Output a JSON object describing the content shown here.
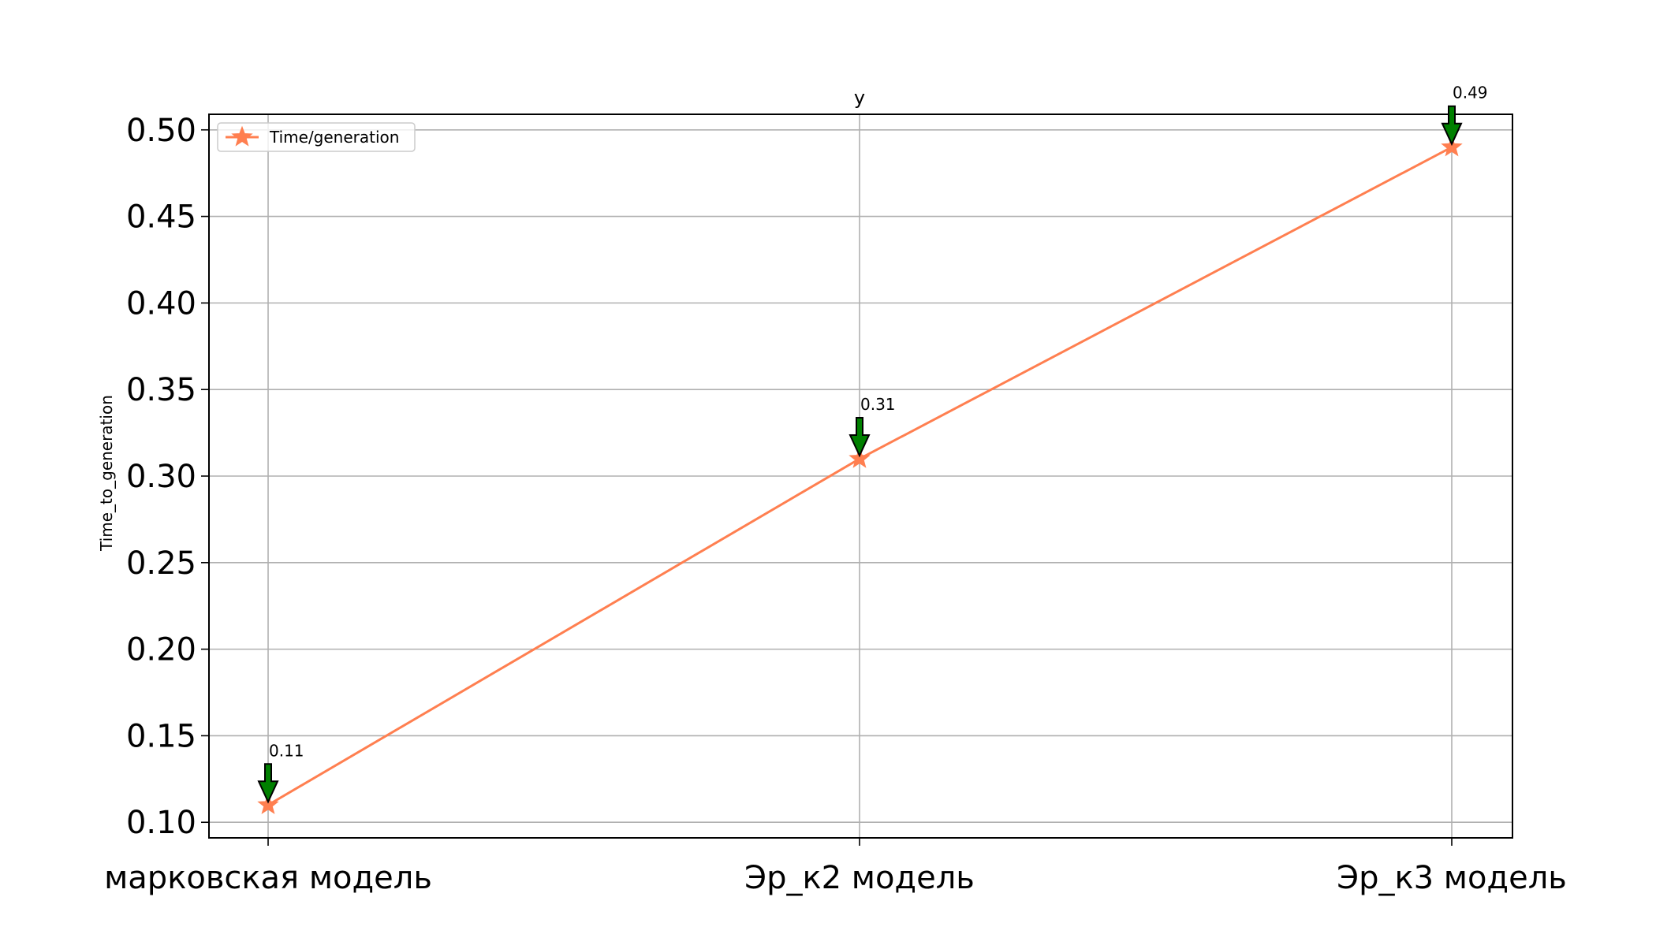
{
  "chart_data": {
    "type": "line",
    "title": "",
    "top_label": "y",
    "xlabel": "",
    "ylabel": "Time_to_generation",
    "categories": [
      "марковская модель",
      "Эр_к2 модель",
      "Эр_к3 модель"
    ],
    "series": [
      {
        "name": "Time/generation",
        "values": [
          0.11,
          0.31,
          0.49
        ],
        "color": "#ff7f50",
        "marker": "star"
      }
    ],
    "annotations": [
      {
        "category": "марковская модель",
        "value": 0.11,
        "text": "0.11",
        "arrow_color": "#008000"
      },
      {
        "category": "Эр_к2 модель",
        "value": 0.31,
        "text": "0.31",
        "arrow_color": "#008000"
      },
      {
        "category": "Эр_к3 модель",
        "value": 0.49,
        "text": "0.49",
        "arrow_color": "#008000"
      }
    ],
    "ylim": [
      0.091,
      0.509
    ],
    "yticks": [
      "0.10",
      "0.15",
      "0.20",
      "0.25",
      "0.30",
      "0.35",
      "0.40",
      "0.45",
      "0.50"
    ],
    "grid": true,
    "legend_position": "top-left"
  }
}
